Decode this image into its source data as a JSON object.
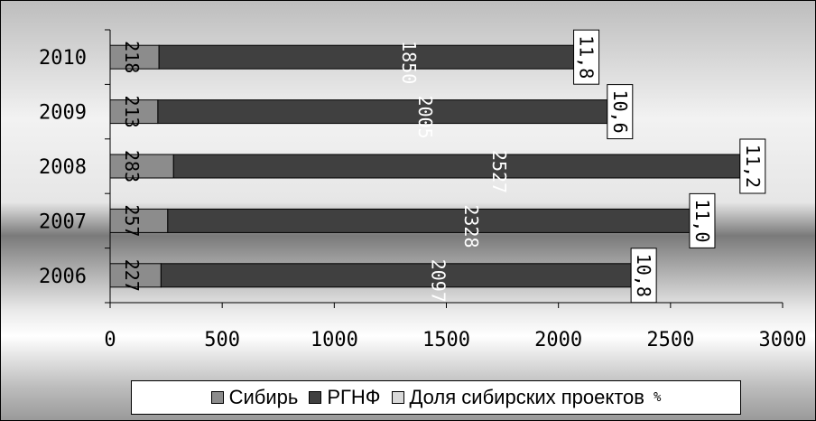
{
  "chart_data": {
    "type": "bar",
    "orientation": "horizontal",
    "stacked": true,
    "categories": [
      "2010",
      "2009",
      "2008",
      "2007",
      "2006"
    ],
    "series": [
      {
        "name": "Сибирь",
        "values": [
          218,
          213,
          283,
          257,
          227
        ],
        "color": "#8c8c8c"
      },
      {
        "name": "РГНФ",
        "values": [
          1850,
          2005,
          2527,
          2328,
          2097
        ],
        "color": "#404040"
      },
      {
        "name": "Доля сибирских проектов",
        "values": [
          11.8,
          10.6,
          11.2,
          11.0,
          10.8
        ],
        "unit": "%",
        "color": "#d9d9d9"
      }
    ],
    "share_labels": [
      "11,8",
      "10,6",
      "11,2",
      "11,0",
      "10,8"
    ],
    "xlim": [
      0,
      3000
    ],
    "xticks": [
      "0",
      "500",
      "1000",
      "1500",
      "2000",
      "2500",
      "3000"
    ],
    "grid": false,
    "legend_position": "bottom"
  },
  "legend": {
    "items": [
      "Сибирь",
      "РГНФ",
      "Доля сибирских проектов"
    ],
    "unit": "%"
  }
}
